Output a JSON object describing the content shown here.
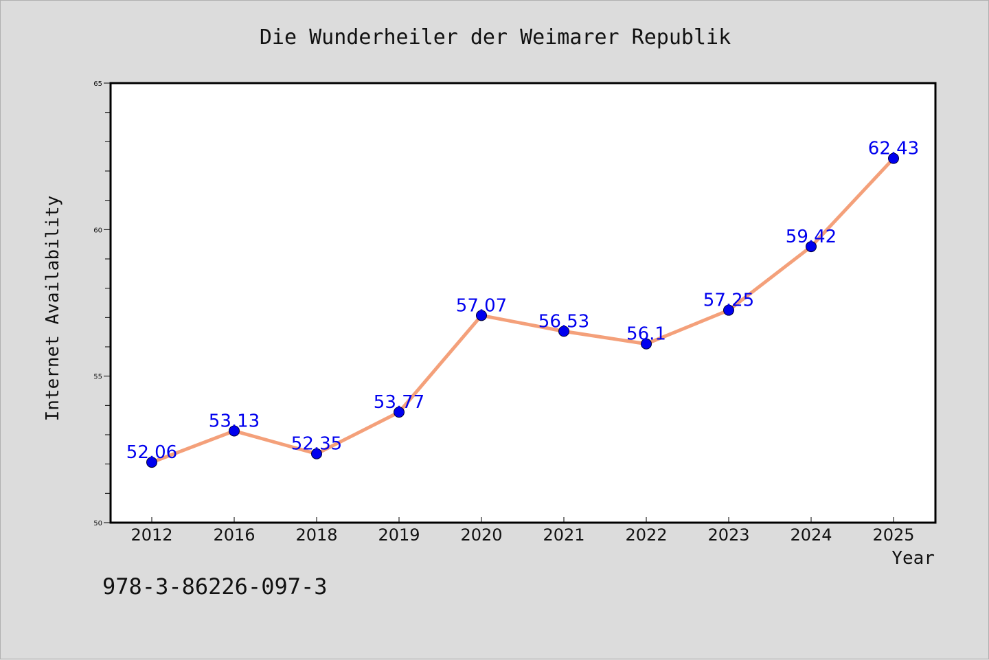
{
  "chart_data": {
    "type": "line",
    "title": "Die Wunderheiler der Weimarer Republik",
    "xlabel": "Year",
    "ylabel": "Internet Availability",
    "categories": [
      "2012",
      "2016",
      "2018",
      "2019",
      "2020",
      "2021",
      "2022",
      "2023",
      "2024",
      "2025"
    ],
    "series": [
      {
        "values": [
          52.06,
          53.13,
          52.35,
          53.77,
          57.07,
          56.53,
          56.1,
          57.25,
          59.42,
          62.43
        ],
        "color": "#f4a07a",
        "marker_color": "#0000ee"
      }
    ],
    "data_labels": [
      "52.06",
      "53.13",
      "52.35",
      "53.77",
      "57.07",
      "56.53",
      "56.1",
      "57.25",
      "59.42",
      "62.43"
    ],
    "ylim": [
      50,
      65
    ],
    "yticks": [
      "50",
      "55",
      "60",
      "65"
    ],
    "grid": false,
    "legend": "none"
  },
  "footnote": "978-3-86226-097-3",
  "colors": {
    "background": "#dcdcdc",
    "plot_background": "#ffffff",
    "line": "#f4a07a",
    "marker": "#0000ee",
    "label": "#0000ee"
  }
}
